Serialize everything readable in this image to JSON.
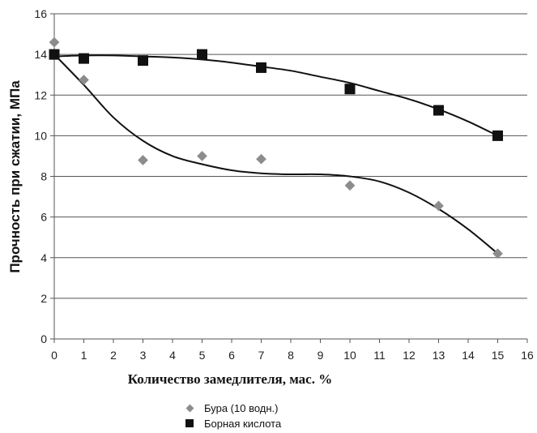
{
  "chart_data": {
    "type": "scatter",
    "title": "",
    "xlabel": "Количество замедлителя, мас. %",
    "ylabel": "Прочность при сжатии, МПа",
    "xlim": [
      0,
      16
    ],
    "ylim": [
      0,
      16
    ],
    "x_ticks": [
      "0",
      "1",
      "2",
      "3",
      "4",
      "5",
      "6",
      "7",
      "8",
      "9",
      "10",
      "11",
      "12",
      "13",
      "14",
      "15",
      "16"
    ],
    "y_ticks": [
      "0",
      "2",
      "4",
      "6",
      "8",
      "10",
      "12",
      "14",
      "16"
    ],
    "grid": "horizontal",
    "legend_position": "bottom-center",
    "series": [
      {
        "name": "Бура (10 водн.)",
        "marker": "diamond",
        "color": "#8c8c8c",
        "x": [
          0,
          1,
          3,
          5,
          7,
          10,
          13,
          15
        ],
        "y": [
          14.6,
          12.75,
          8.8,
          9.0,
          8.85,
          7.55,
          6.55,
          4.2
        ],
        "trend": {
          "x": [
            0,
            1,
            2,
            3,
            4,
            5,
            6,
            7,
            8,
            9,
            10,
            11,
            12,
            13,
            14,
            15
          ],
          "y": [
            14.0,
            12.5,
            10.9,
            9.75,
            9.0,
            8.6,
            8.3,
            8.15,
            8.1,
            8.1,
            8.0,
            7.75,
            7.2,
            6.4,
            5.4,
            4.2
          ]
        }
      },
      {
        "name": "Борная кислота",
        "marker": "square",
        "color": "#111111",
        "x": [
          0,
          1,
          3,
          5,
          7,
          10,
          13,
          15
        ],
        "y": [
          14.0,
          13.8,
          13.7,
          14.0,
          13.35,
          12.3,
          11.25,
          10.0
        ],
        "trend": {
          "x": [
            0,
            1,
            2,
            3,
            4,
            5,
            6,
            7,
            8,
            9,
            10,
            11,
            12,
            13,
            14,
            15
          ],
          "y": [
            13.9,
            13.95,
            13.95,
            13.9,
            13.85,
            13.75,
            13.6,
            13.4,
            13.2,
            12.9,
            12.6,
            12.2,
            11.8,
            11.3,
            10.7,
            10.0
          ]
        }
      }
    ]
  }
}
